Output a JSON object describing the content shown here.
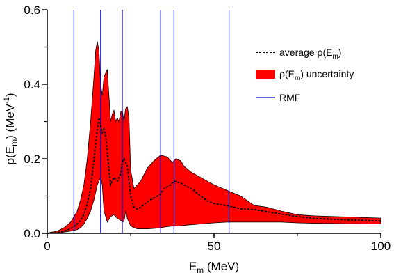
{
  "chart_data": {
    "type": "area",
    "title": "",
    "xlabel": {
      "base": "E",
      "sub": "m",
      "rest": " (MeV)"
    },
    "ylabel": {
      "pre": "ρ(E",
      "sub": "m",
      "mid": ") (MeV",
      "sup": "-1",
      "post": ")"
    },
    "xlim": [
      0,
      100
    ],
    "ylim": [
      0,
      0.6
    ],
    "xticks": [
      0,
      50,
      100
    ],
    "yticks": [
      0.0,
      0.2,
      0.4,
      0.6
    ],
    "xtick_labels": [
      "0",
      "50",
      "100"
    ],
    "ytick_labels": [
      "0.0",
      "0.2",
      "0.4",
      "0.6"
    ],
    "grid": false,
    "legend_position": "top-right",
    "legend": [
      {
        "key": "average",
        "pre": "average ρ(E",
        "sub": "m",
        "post": ")"
      },
      {
        "key": "band",
        "pre": "ρ(E",
        "sub": "m",
        "post": ") uncertainty"
      },
      {
        "key": "rmf",
        "pre": "RMF",
        "sub": "",
        "post": ""
      }
    ],
    "colors": {
      "band": "#ff0000",
      "average": "#000000",
      "rmf": "#0000cc",
      "axis": "#000000"
    },
    "rmf_lines": [
      8,
      16,
      22.5,
      34,
      38,
      54.5
    ],
    "series": [
      {
        "key": "band_upper",
        "x": [
          0,
          3,
          5,
          7,
          9,
          10,
          11,
          12,
          13,
          14,
          14.5,
          15,
          15.5,
          16,
          16.5,
          17,
          18,
          19,
          19.5,
          20,
          20.5,
          21,
          21.5,
          22,
          22.5,
          23,
          23.5,
          24,
          24.5,
          25,
          26,
          27,
          28,
          30,
          32,
          34,
          36,
          37.5,
          38.5,
          40,
          41,
          43,
          46,
          50,
          54,
          58,
          62,
          66,
          70,
          75,
          80,
          90,
          100
        ],
        "y": [
          0.001,
          0.006,
          0.015,
          0.03,
          0.06,
          0.09,
          0.13,
          0.2,
          0.3,
          0.42,
          0.49,
          0.515,
          0.49,
          0.4,
          0.37,
          0.42,
          0.44,
          0.3,
          0.32,
          0.33,
          0.3,
          0.31,
          0.3,
          0.325,
          0.33,
          0.3,
          0.335,
          0.34,
          0.31,
          0.17,
          0.12,
          0.13,
          0.14,
          0.175,
          0.195,
          0.21,
          0.205,
          0.19,
          0.2,
          0.195,
          0.18,
          0.165,
          0.15,
          0.13,
          0.115,
          0.1,
          0.075,
          0.07,
          0.06,
          0.05,
          0.047,
          0.044,
          0.041
        ]
      },
      {
        "key": "band_lower",
        "x": [
          0,
          3,
          5,
          7,
          9,
          10,
          11,
          12,
          13,
          14,
          15,
          16,
          16.5,
          17,
          18,
          19,
          20,
          21,
          22,
          23,
          23.5,
          24,
          25,
          26,
          27,
          28,
          30,
          32,
          34,
          36,
          38,
          40,
          42,
          46,
          50,
          54,
          58,
          62,
          66,
          70,
          75,
          80,
          90,
          100
        ],
        "y": [
          0,
          0.001,
          0.003,
          0.006,
          0.01,
          0.015,
          0.025,
          0.04,
          0.06,
          0.09,
          0.13,
          0.15,
          0.13,
          0.06,
          0.03,
          0.045,
          0.05,
          0.04,
          0.035,
          0.03,
          0.06,
          0.04,
          0.02,
          0.015,
          0.012,
          0.012,
          0.012,
          0.013,
          0.015,
          0.018,
          0.02,
          0.02,
          0.022,
          0.025,
          0.028,
          0.03,
          0.03,
          0.03,
          0.03,
          0.03,
          0.028,
          0.027,
          0.026,
          0.025
        ]
      },
      {
        "key": "average",
        "name": "average ρ(Em)",
        "x": [
          0,
          3,
          5,
          7,
          9,
          10,
          11,
          12,
          13,
          14,
          15,
          15.5,
          16,
          16.5,
          17,
          17.5,
          18,
          18.5,
          19,
          20,
          21,
          22,
          22.5,
          23,
          24,
          25,
          26,
          27,
          28,
          30,
          32,
          34,
          35,
          36,
          37,
          38,
          39,
          40,
          42,
          44,
          46,
          48,
          50,
          54,
          58,
          62,
          66,
          70,
          75,
          80,
          90,
          100
        ],
        "y": [
          0,
          0.002,
          0.006,
          0.012,
          0.025,
          0.035,
          0.05,
          0.08,
          0.12,
          0.2,
          0.28,
          0.31,
          0.29,
          0.27,
          0.28,
          0.26,
          0.22,
          0.17,
          0.13,
          0.15,
          0.14,
          0.16,
          0.19,
          0.2,
          0.18,
          0.1,
          0.07,
          0.065,
          0.07,
          0.085,
          0.095,
          0.105,
          0.12,
          0.125,
          0.13,
          0.14,
          0.138,
          0.135,
          0.125,
          0.115,
          0.1,
          0.087,
          0.08,
          0.074,
          0.066,
          0.064,
          0.058,
          0.052,
          0.045,
          0.04,
          0.036,
          0.033
        ]
      }
    ]
  }
}
